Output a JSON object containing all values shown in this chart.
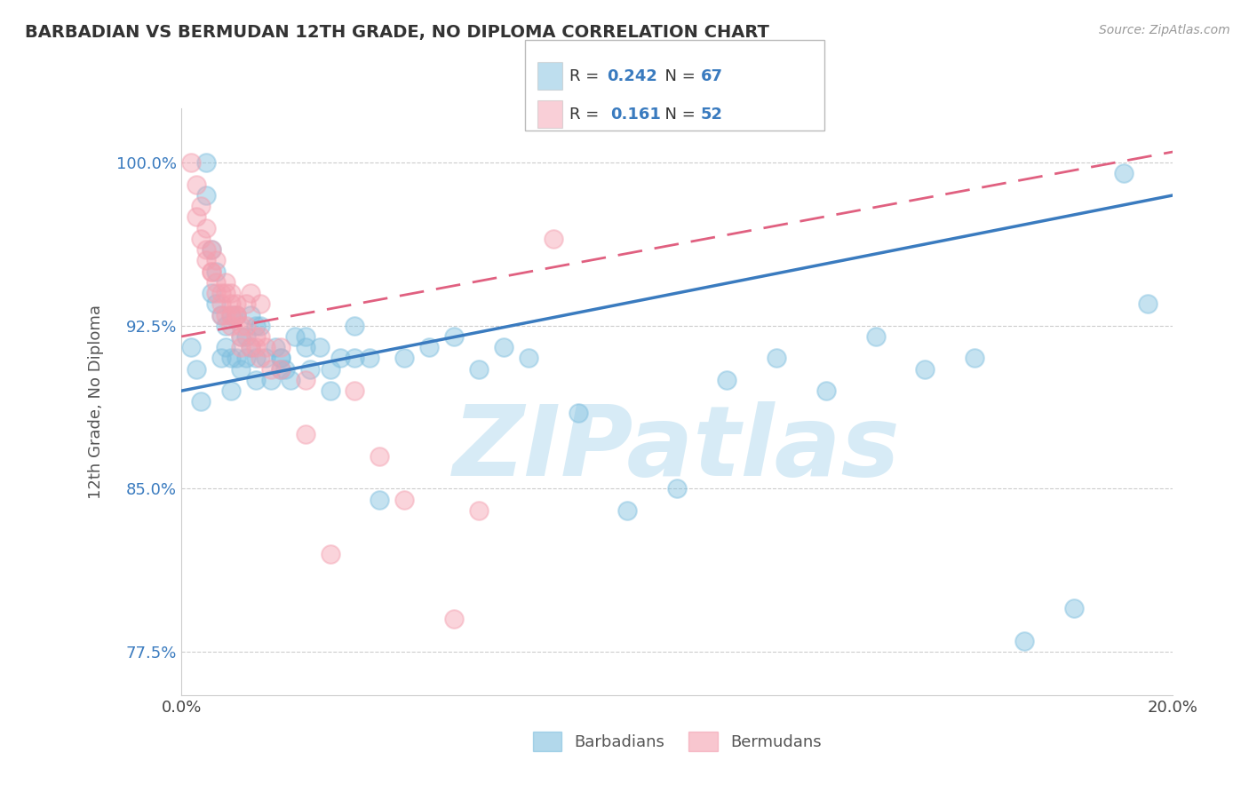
{
  "title": "BARBADIAN VS BERMUDAN 12TH GRADE, NO DIPLOMA CORRELATION CHART",
  "source_text": "Source: ZipAtlas.com",
  "ylabel": "12th Grade, No Diploma",
  "xlim": [
    0.0,
    20.0
  ],
  "ylim": [
    75.5,
    102.5
  ],
  "yticks": [
    77.5,
    85.0,
    92.5,
    100.0
  ],
  "ytick_labels": [
    "77.5%",
    "85.0%",
    "92.5%",
    "100.0%"
  ],
  "xticks": [
    0.0,
    5.0,
    10.0,
    15.0,
    20.0
  ],
  "xtick_labels": [
    "0.0%",
    "",
    "",
    "",
    "20.0%"
  ],
  "blue_color": "#7fbfdf",
  "pink_color": "#f4a0b0",
  "blue_line_color": "#3a7bbf",
  "pink_line_color": "#e06080",
  "legend_R_blue": "0.242",
  "legend_N_blue": "67",
  "legend_R_pink": "0.161",
  "legend_N_pink": "52",
  "watermark": "ZIPatlas",
  "watermark_color": "#d0e8f5",
  "legend_label_blue": "Barbadians",
  "legend_label_pink": "Bermudans",
  "blue_x": [
    0.2,
    0.3,
    0.4,
    0.5,
    0.5,
    0.6,
    0.6,
    0.7,
    0.7,
    0.8,
    0.8,
    0.9,
    0.9,
    1.0,
    1.0,
    1.0,
    1.1,
    1.1,
    1.2,
    1.2,
    1.3,
    1.3,
    1.4,
    1.4,
    1.5,
    1.5,
    1.6,
    1.7,
    1.8,
    1.9,
    2.0,
    2.0,
    2.1,
    2.2,
    2.3,
    2.5,
    2.6,
    2.8,
    3.0,
    3.2,
    3.5,
    3.8,
    4.0,
    4.5,
    5.0,
    5.5,
    6.0,
    6.5,
    7.0,
    8.0,
    9.0,
    10.0,
    11.0,
    12.0,
    13.0,
    14.0,
    15.0,
    16.0,
    17.0,
    18.0,
    19.0,
    19.5,
    1.5,
    2.0,
    2.5,
    3.0,
    3.5
  ],
  "blue_y": [
    91.5,
    90.5,
    89.0,
    100.0,
    98.5,
    96.0,
    94.0,
    93.5,
    95.0,
    93.0,
    91.0,
    91.5,
    92.5,
    93.0,
    91.0,
    89.5,
    93.0,
    91.0,
    92.0,
    90.5,
    91.0,
    92.0,
    93.0,
    91.5,
    90.0,
    91.0,
    92.5,
    91.0,
    90.0,
    91.5,
    90.5,
    91.0,
    90.5,
    90.0,
    92.0,
    91.5,
    90.5,
    91.5,
    90.5,
    91.0,
    92.5,
    91.0,
    84.5,
    91.0,
    91.5,
    92.0,
    90.5,
    91.5,
    91.0,
    88.5,
    84.0,
    85.0,
    90.0,
    91.0,
    89.5,
    92.0,
    90.5,
    91.0,
    78.0,
    79.5,
    99.5,
    93.5,
    92.5,
    91.0,
    92.0,
    89.5,
    91.0
  ],
  "pink_x": [
    0.2,
    0.3,
    0.3,
    0.4,
    0.4,
    0.5,
    0.5,
    0.6,
    0.6,
    0.7,
    0.7,
    0.8,
    0.8,
    0.9,
    0.9,
    1.0,
    1.0,
    1.1,
    1.2,
    1.3,
    1.4,
    1.5,
    1.6,
    1.7,
    1.8,
    2.0,
    2.5,
    3.0,
    4.0,
    6.0,
    7.5,
    1.2,
    1.5,
    2.0,
    2.5,
    3.5,
    4.5,
    5.5,
    0.9,
    1.0,
    1.1,
    1.3,
    1.6,
    0.5,
    0.6,
    0.7,
    0.8,
    1.0,
    1.1,
    1.2,
    1.4,
    1.6
  ],
  "pink_y": [
    100.0,
    99.0,
    97.5,
    96.5,
    98.0,
    97.0,
    95.5,
    95.0,
    96.0,
    94.5,
    95.5,
    94.0,
    93.5,
    93.0,
    94.0,
    93.5,
    92.5,
    93.0,
    92.0,
    93.5,
    94.0,
    91.5,
    92.0,
    91.5,
    90.5,
    90.5,
    87.5,
    82.0,
    86.5,
    84.0,
    96.5,
    91.5,
    92.0,
    91.5,
    90.0,
    89.5,
    84.5,
    79.0,
    94.5,
    93.0,
    93.5,
    92.5,
    93.5,
    96.0,
    95.0,
    94.0,
    93.0,
    94.0,
    93.0,
    92.5,
    91.5,
    91.0
  ],
  "blue_trend_x0": 0.0,
  "blue_trend_x1": 20.0,
  "blue_trend_y0": 89.5,
  "blue_trend_y1": 98.5,
  "pink_trend_x0": 0.0,
  "pink_trend_x1": 20.0,
  "pink_trend_y0": 92.0,
  "pink_trend_y1": 100.5
}
